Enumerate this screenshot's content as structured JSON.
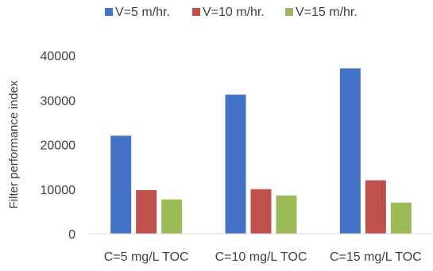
{
  "chart_data": {
    "type": "bar",
    "title": "",
    "xlabel": "",
    "ylabel": "Filter performance index",
    "ylim": [
      0,
      40000
    ],
    "yticks": [
      0,
      10000,
      20000,
      30000,
      40000
    ],
    "grid": false,
    "legend_position": "top",
    "categories": [
      "C=5 mg/L TOC",
      "C=10 mg/L TOC",
      "C=15 mg/L TOC"
    ],
    "series": [
      {
        "name": "V=5 m/hr.",
        "color": "#4472C4",
        "values": [
          22000,
          31200,
          37100
        ]
      },
      {
        "name": "V=10 m/hr.",
        "color": "#C0504D",
        "values": [
          9800,
          10000,
          12000
        ]
      },
      {
        "name": "V=15 m/hr.",
        "color": "#9BBB59",
        "values": [
          7700,
          8600,
          7000
        ]
      }
    ]
  }
}
